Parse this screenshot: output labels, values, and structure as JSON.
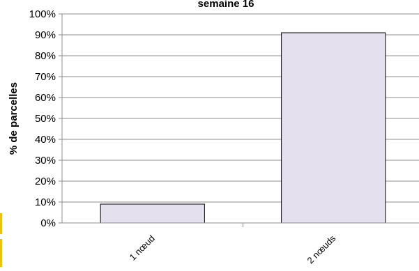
{
  "chart_data": {
    "type": "bar",
    "title": "semaine 16",
    "xlabel": "",
    "ylabel": "% de parcelles",
    "categories": [
      "1 nœud",
      "2 nœuds"
    ],
    "values": [
      9,
      91
    ],
    "ylim": [
      0,
      100
    ],
    "yticks": [
      "0%",
      "10%",
      "20%",
      "30%",
      "40%",
      "50%",
      "60%",
      "70%",
      "80%",
      "90%",
      "100%"
    ],
    "grid": true,
    "legend": "none",
    "bar_color": "#e5e0ee",
    "bar_stroke": "#000000",
    "grid_color": "#8c8c8c"
  }
}
